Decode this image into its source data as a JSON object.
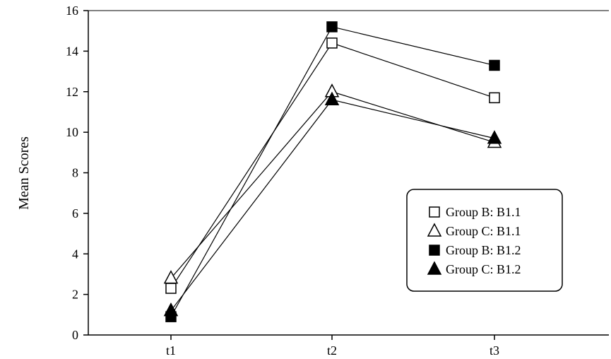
{
  "chart_data": {
    "type": "line",
    "categories": [
      "t1",
      "t2",
      "t3"
    ],
    "ylabel": "Mean Scores",
    "xlabel": "",
    "ylim": [
      0,
      16
    ],
    "yticks": [
      0,
      2,
      4,
      6,
      8,
      10,
      12,
      14,
      16
    ],
    "grid": false,
    "legend_position": "bottom-right",
    "series": [
      {
        "name": "Group B: B1.1",
        "marker": "square-open",
        "values": [
          2.3,
          14.4,
          11.7
        ]
      },
      {
        "name": "Group C: B1.1",
        "marker": "triangle-open",
        "values": [
          2.8,
          12.0,
          9.5
        ]
      },
      {
        "name": "Group B: B1.2",
        "marker": "square-filled",
        "values": [
          0.9,
          15.2,
          13.3
        ]
      },
      {
        "name": "Group C: B1.2",
        "marker": "triangle-filled",
        "values": [
          1.2,
          11.6,
          9.7
        ]
      }
    ]
  }
}
